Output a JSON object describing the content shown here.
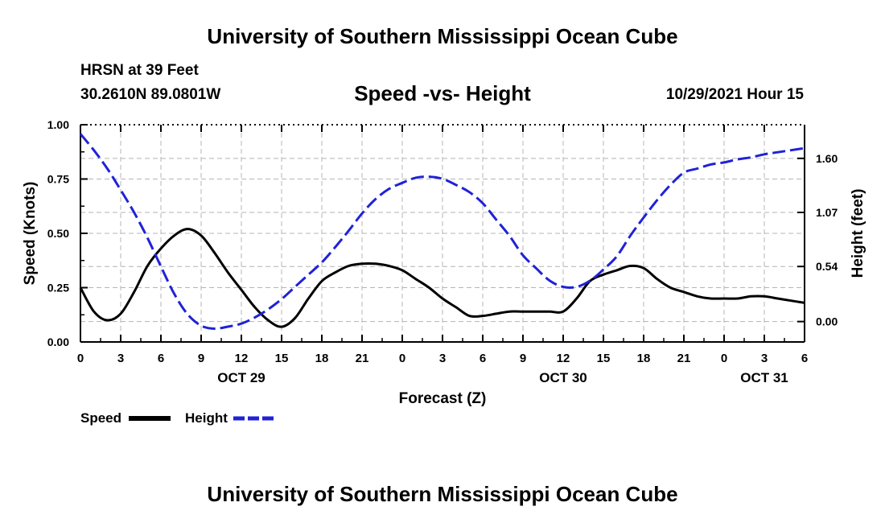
{
  "header": {
    "title": "University of Southern Mississippi Ocean Cube",
    "station": "HRSN at 39 Feet",
    "coords": "30.2610N  89.0801W",
    "plot_title": "Speed -vs- Height",
    "datetime": "10/29/2021 Hour 15"
  },
  "footer": {
    "title": "University of Southern Mississippi Ocean Cube"
  },
  "legend": {
    "speed_label": "Speed",
    "height_label": "Height"
  },
  "colors": {
    "speed": "#000000",
    "height": "#1f22d6",
    "grid": "#b4b4b4"
  },
  "chart_data": {
    "type": "line",
    "xlabel": "Forecast (Z)",
    "ylabel_left": "Speed (Knots)",
    "ylabel_right": "Height (feet)",
    "x_range_hours": [
      0,
      54
    ],
    "x_ticks": [
      {
        "h": 0,
        "label": "0"
      },
      {
        "h": 3,
        "label": "3"
      },
      {
        "h": 6,
        "label": "6"
      },
      {
        "h": 9,
        "label": "9"
      },
      {
        "h": 12,
        "label": "12"
      },
      {
        "h": 15,
        "label": "15"
      },
      {
        "h": 18,
        "label": "18"
      },
      {
        "h": 21,
        "label": "21"
      },
      {
        "h": 24,
        "label": "0"
      },
      {
        "h": 27,
        "label": "3"
      },
      {
        "h": 30,
        "label": "6"
      },
      {
        "h": 33,
        "label": "9"
      },
      {
        "h": 36,
        "label": "12"
      },
      {
        "h": 39,
        "label": "15"
      },
      {
        "h": 42,
        "label": "18"
      },
      {
        "h": 45,
        "label": "21"
      },
      {
        "h": 48,
        "label": "0"
      },
      {
        "h": 51,
        "label": "3"
      },
      {
        "h": 54,
        "label": "6"
      }
    ],
    "date_labels": [
      {
        "h": 12,
        "label": "OCT 29"
      },
      {
        "h": 36,
        "label": "OCT 30"
      },
      {
        "h": 51,
        "label": "OCT 31"
      }
    ],
    "left_axis": {
      "min": 0,
      "max": 1.0,
      "ticks": [
        "0.00",
        "0.25",
        "0.50",
        "0.75",
        "1.00"
      ],
      "tick_values": [
        0,
        0.25,
        0.5,
        0.75,
        1.0
      ]
    },
    "right_axis": {
      "min": -0.2,
      "max": 1.93,
      "ticks": [
        "0.00",
        "0.54",
        "1.07",
        "1.60"
      ],
      "tick_values": [
        0,
        0.54,
        1.07,
        1.6
      ]
    },
    "series": [
      {
        "name": "Speed",
        "axis": "left",
        "x": [
          0,
          1,
          2,
          3,
          4,
          5,
          6,
          7,
          8,
          9,
          10,
          11,
          12,
          13,
          14,
          15,
          16,
          17,
          18,
          19,
          20,
          21,
          22,
          23,
          24,
          25,
          26,
          27,
          28,
          29,
          30,
          31,
          32,
          33,
          34,
          35,
          36,
          37,
          38,
          39,
          40,
          41,
          42,
          43,
          44,
          45,
          46,
          47,
          48,
          49,
          50,
          51,
          52,
          53,
          54
        ],
        "values": [
          0.25,
          0.14,
          0.1,
          0.13,
          0.23,
          0.35,
          0.43,
          0.49,
          0.52,
          0.49,
          0.41,
          0.32,
          0.24,
          0.16,
          0.1,
          0.07,
          0.11,
          0.2,
          0.28,
          0.32,
          0.35,
          0.36,
          0.36,
          0.35,
          0.33,
          0.29,
          0.25,
          0.2,
          0.16,
          0.12,
          0.12,
          0.13,
          0.14,
          0.14,
          0.14,
          0.14,
          0.14,
          0.2,
          0.28,
          0.31,
          0.33,
          0.35,
          0.34,
          0.29,
          0.25,
          0.23,
          0.21,
          0.2,
          0.2,
          0.2,
          0.21,
          0.21,
          0.2,
          0.19,
          0.18
        ]
      },
      {
        "name": "Height",
        "axis": "right",
        "x": [
          0,
          1,
          2,
          3,
          4,
          5,
          6,
          7,
          8,
          9,
          10,
          11,
          12,
          13,
          14,
          15,
          16,
          17,
          18,
          19,
          20,
          21,
          22,
          23,
          24,
          25,
          26,
          27,
          28,
          29,
          30,
          31,
          32,
          33,
          34,
          35,
          36,
          37,
          38,
          39,
          40,
          41,
          42,
          43,
          44,
          45,
          46,
          47,
          48,
          49,
          50,
          51,
          52,
          53,
          54
        ],
        "values": [
          1.84,
          1.68,
          1.5,
          1.29,
          1.07,
          0.82,
          0.54,
          0.27,
          0.07,
          -0.04,
          -0.07,
          -0.05,
          -0.02,
          0.04,
          0.12,
          0.22,
          0.34,
          0.46,
          0.58,
          0.73,
          0.89,
          1.06,
          1.2,
          1.3,
          1.36,
          1.41,
          1.42,
          1.4,
          1.34,
          1.27,
          1.16,
          1.0,
          0.84,
          0.65,
          0.52,
          0.4,
          0.34,
          0.34,
          0.4,
          0.51,
          0.64,
          0.84,
          1.02,
          1.19,
          1.34,
          1.46,
          1.5,
          1.54,
          1.56,
          1.59,
          1.61,
          1.64,
          1.66,
          1.68,
          1.7
        ]
      }
    ]
  }
}
